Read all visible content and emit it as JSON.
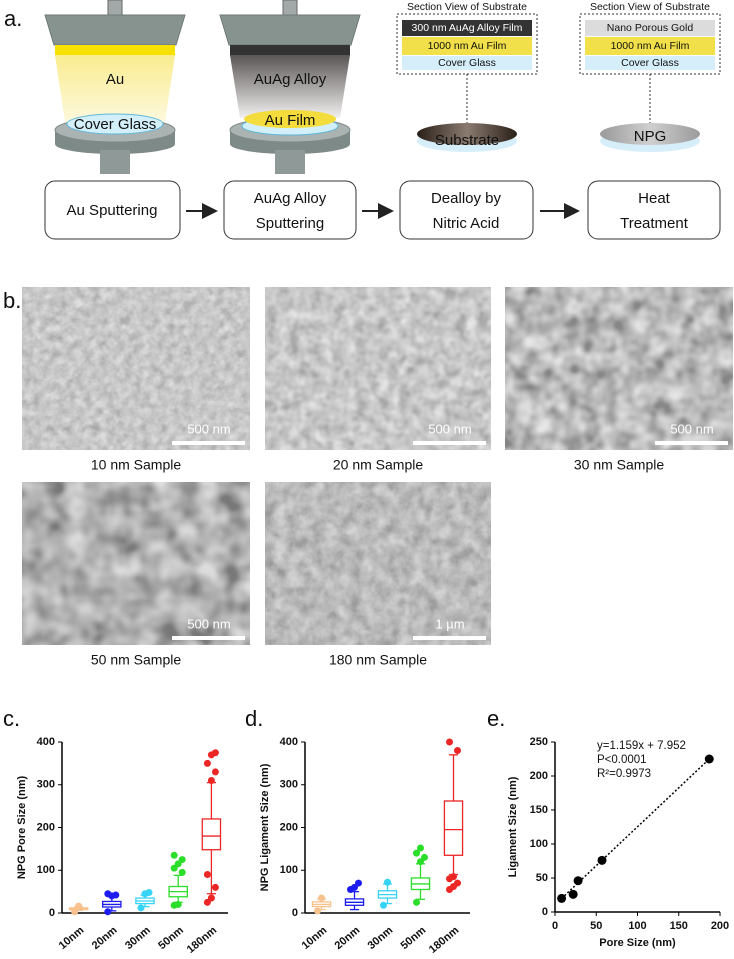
{
  "panel_labels": [
    "a.",
    "b.",
    "c.",
    "d.",
    "e."
  ],
  "diagram": {
    "devices": [
      {
        "target_label": "Au",
        "substrate_label": "Cover Glass"
      },
      {
        "target_label": "AuAg Alloy",
        "substrate_label": "Au Film"
      }
    ],
    "section_views": [
      {
        "title": "Section View of Substrate",
        "layers": [
          "300 nm AuAg Alloy Film",
          "1000 nm Au Film",
          "Cover Glass"
        ],
        "sample_label": "Substrate"
      },
      {
        "title": "Section View of Substrate",
        "layers": [
          "Nano Porous Gold",
          "1000 nm Au Film",
          "Cover Glass"
        ],
        "sample_label": "NPG"
      }
    ],
    "steps": [
      [
        "Au Sputtering"
      ],
      [
        "AuAg Alloy",
        "Sputtering"
      ],
      [
        "Dealloy by",
        "Nitric Acid"
      ],
      [
        "Heat",
        "Treatment"
      ]
    ]
  },
  "micrographs": [
    {
      "scale_bar": "500 nm",
      "caption": "10 nm Sample"
    },
    {
      "scale_bar": "500 nm",
      "caption": "20 nm Sample"
    },
    {
      "scale_bar": "500 nm",
      "caption": "30 nm Sample"
    },
    {
      "scale_bar": "500 nm",
      "caption": "50 nm Sample"
    },
    {
      "scale_bar": "1 µm",
      "caption": "180 nm Sample"
    }
  ],
  "chart_data": [
    {
      "type": "box",
      "y_label": "NPG Pore Size (nm)",
      "categories": [
        "10nm",
        "20nm",
        "30nm",
        "50nm",
        "180nm"
      ],
      "colors": [
        "#f7c28e",
        "#1c1cf0",
        "#35d3f5",
        "#2ade2a",
        "#ec2525"
      ],
      "boxes": [
        {
          "min": 6,
          "q1": 8,
          "median": 10,
          "q3": 12,
          "max": 14,
          "outliers": [
            3,
            16
          ]
        },
        {
          "min": 5,
          "q1": 14,
          "median": 20,
          "q3": 27,
          "max": 38,
          "outliers": [
            3,
            40,
            42,
            45
          ]
        },
        {
          "min": 15,
          "q1": 22,
          "median": 28,
          "q3": 35,
          "max": 42,
          "outliers": [
            12,
            45,
            48
          ]
        },
        {
          "min": 25,
          "q1": 38,
          "median": 50,
          "q3": 62,
          "max": 88,
          "outliers": [
            18,
            20,
            95,
            105,
            115,
            125,
            135
          ]
        },
        {
          "min": 45,
          "q1": 148,
          "median": 180,
          "q3": 220,
          "max": 305,
          "outliers": [
            25,
            35,
            60,
            90,
            310,
            330,
            350,
            370,
            375
          ]
        }
      ],
      "ylim": [
        0,
        400
      ],
      "yticks": [
        0,
        100,
        200,
        300,
        400
      ]
    },
    {
      "type": "box",
      "y_label": "NPG Ligament Size (nm)",
      "categories": [
        "10nm",
        "20nm",
        "30nm",
        "50nm",
        "180nm"
      ],
      "colors": [
        "#f7c28e",
        "#1c1cf0",
        "#35d3f5",
        "#2ade2a",
        "#ec2525"
      ],
      "boxes": [
        {
          "min": 8,
          "q1": 15,
          "median": 20,
          "q3": 26,
          "max": 33,
          "outliers": [
            5,
            35
          ]
        },
        {
          "min": 8,
          "q1": 18,
          "median": 25,
          "q3": 33,
          "max": 50,
          "outliers": [
            55,
            60,
            70
          ]
        },
        {
          "min": 22,
          "q1": 35,
          "median": 43,
          "q3": 52,
          "max": 68,
          "outliers": [
            18,
            72
          ]
        },
        {
          "min": 32,
          "q1": 55,
          "median": 68,
          "q3": 82,
          "max": 115,
          "outliers": [
            25,
            120,
            130,
            140,
            152
          ]
        },
        {
          "min": 90,
          "q1": 135,
          "median": 195,
          "q3": 262,
          "max": 370,
          "outliers": [
            55,
            62,
            70,
            80,
            85,
            380,
            400
          ]
        }
      ],
      "ylim": [
        0,
        400
      ],
      "yticks": [
        0,
        100,
        200,
        300,
        400
      ]
    },
    {
      "type": "scatter",
      "x_label": "Pore Size (nm)",
      "y_label": "Ligament Size (nm)",
      "x": [
        8,
        22,
        28,
        57,
        187
      ],
      "values": [
        20,
        26,
        46,
        76,
        225
      ],
      "color": "#000000",
      "annotations": [
        "y=1.159x + 7.952",
        "P<0.0001",
        "R²=0.9973"
      ],
      "xlim": [
        0,
        200
      ],
      "xticks": [
        0,
        50,
        100,
        150,
        200
      ],
      "ylim": [
        0,
        250
      ],
      "yticks": [
        0,
        50,
        100,
        150,
        200,
        250
      ]
    }
  ]
}
